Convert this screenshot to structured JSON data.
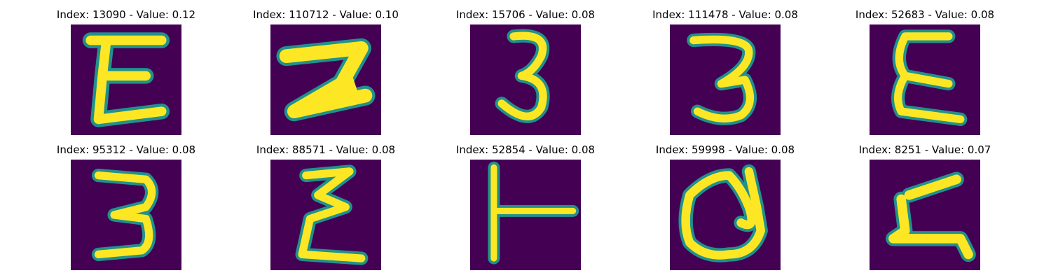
{
  "colors": {
    "background": "#440154",
    "stroke_outer": "#21918c",
    "stroke_inner": "#fde725"
  },
  "panels": [
    {
      "title": "Index: 13090 - Value: 0.12",
      "glyph": "E"
    },
    {
      "title": "Index: 110712 - Value: 0.10",
      "glyph": "2"
    },
    {
      "title": "Index: 15706 - Value: 0.08",
      "glyph": "3"
    },
    {
      "title": "Index: 111478 - Value: 0.08",
      "glyph": "3"
    },
    {
      "title": "Index: 52683 - Value: 0.08",
      "glyph": "E"
    },
    {
      "title": "Index: 95312 - Value: 0.08",
      "glyph": "3"
    },
    {
      "title": "Index: 88571 - Value: 0.08",
      "glyph": "Σ"
    },
    {
      "title": "Index: 52854 - Value: 0.08",
      "glyph": "T"
    },
    {
      "title": "Index: 59998 - Value: 0.08",
      "glyph": "a"
    },
    {
      "title": "Index: 8251 - Value: 0.07",
      "glyph": "Z"
    }
  ]
}
